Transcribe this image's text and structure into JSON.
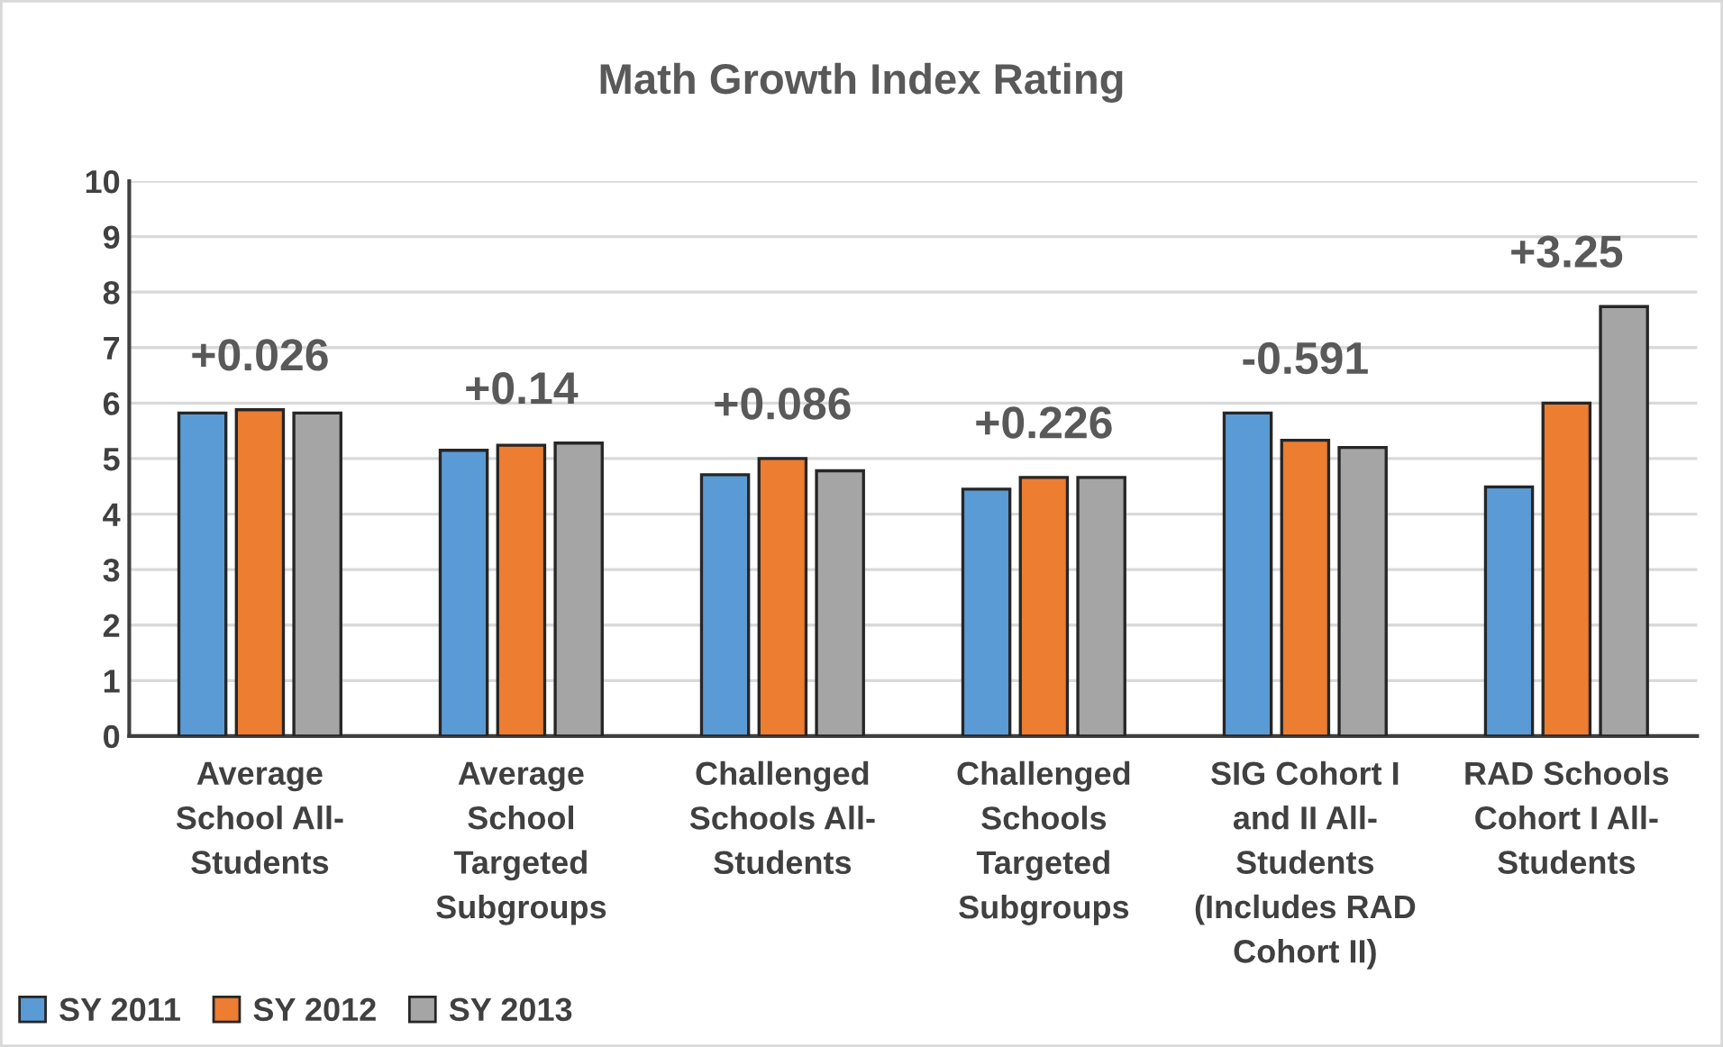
{
  "chart_data": {
    "type": "bar",
    "title": "Math Growth Index Rating",
    "categories": [
      "Average\nSchool All-\nStudents",
      "Average\nSchool\nTargeted\nSubgroups",
      "Challenged\nSchools All-\nStudents",
      "Challenged\nSchools\nTargeted\nSubgroups",
      "SIG Cohort I\nand II All-\nStudents\n(Includes RAD\nCohort II)",
      "RAD Schools\nCohort I All-\nStudents"
    ],
    "series": [
      {
        "name": "SY 2011",
        "color": "#5b9bd5",
        "values": [
          5.82,
          5.15,
          4.71,
          4.45,
          5.82,
          4.49
        ]
      },
      {
        "name": "SY 2012",
        "color": "#ed7d31",
        "values": [
          5.88,
          5.24,
          5.0,
          4.66,
          5.33,
          6.0
        ]
      },
      {
        "name": "SY 2013",
        "color": "#a5a5a5",
        "values": [
          5.82,
          5.28,
          4.78,
          4.66,
          5.2,
          7.74
        ]
      }
    ],
    "ylim": [
      0,
      10
    ],
    "yticks": [
      0,
      1,
      2,
      3,
      4,
      5,
      6,
      7,
      8,
      9,
      10
    ],
    "grid": "y",
    "legend": "bottom left",
    "annotations": [
      "+0.026",
      "+0.14",
      "+0.086",
      "+0.226",
      "-0.591",
      "+3.25"
    ]
  }
}
